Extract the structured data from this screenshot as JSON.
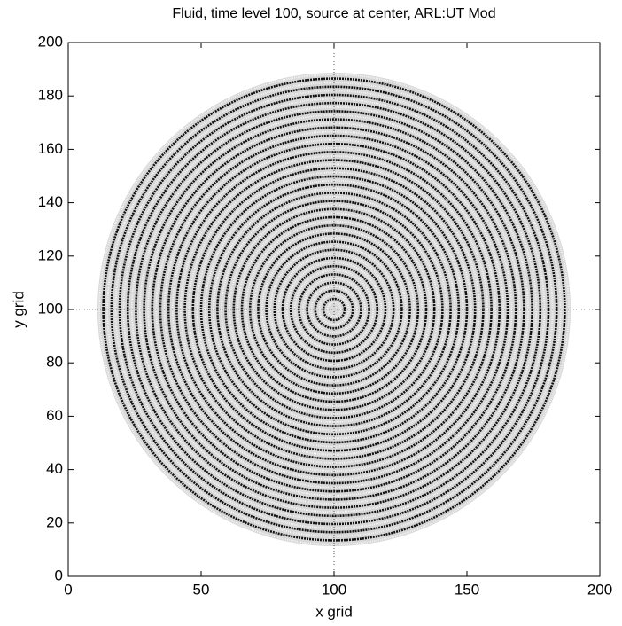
{
  "chart_data": {
    "type": "image",
    "title": "Fluid, time level 100, source at center, ARL:UT Mod",
    "xlabel": "x grid",
    "ylabel": "y grid",
    "xlim": [
      0,
      200
    ],
    "ylim": [
      0,
      200
    ],
    "xticks": [
      0,
      50,
      100,
      150,
      200
    ],
    "yticks": [
      0,
      20,
      40,
      60,
      80,
      100,
      120,
      140,
      160,
      180,
      200
    ]
  }
}
